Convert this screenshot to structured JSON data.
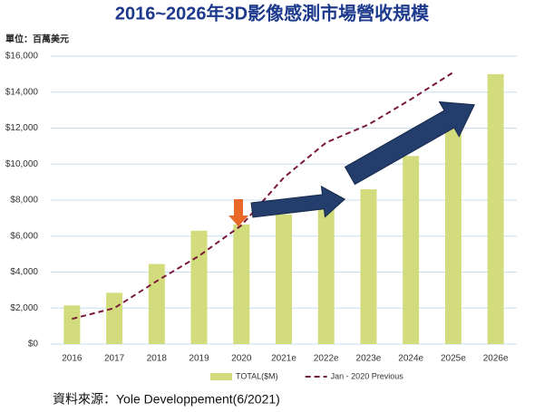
{
  "chart_data": {
    "type": "bar",
    "title": "2016~2026年3D影像感測市場營收規模",
    "unit_label": "單位：百萬美元",
    "source": "資料來源：Yole Developpement(6/2021)",
    "categories": [
      "2016",
      "2017",
      "2018",
      "2019",
      "2020",
      "2021e",
      "2022e",
      "2023e",
      "2024e",
      "2025e",
      "2026e"
    ],
    "series": [
      {
        "name": "TOTAL($M)",
        "type": "bar",
        "color": "#d3dc7c",
        "values": [
          2150,
          2850,
          4450,
          6300,
          6650,
          7200,
          7650,
          8600,
          10450,
          12700,
          15000
        ]
      },
      {
        "name": "Jan - 2020 Previous",
        "type": "line",
        "color": "#7a1a3c",
        "values": [
          1400,
          2000,
          3500,
          4900,
          6600,
          9250,
          11200,
          12200,
          13600,
          15100,
          null
        ]
      }
    ],
    "ylim": [
      0,
      16000
    ],
    "yticks": [
      {
        "value": 0,
        "label": "$0"
      },
      {
        "value": 2000,
        "label": "$2,000"
      },
      {
        "value": 4000,
        "label": "$4,000"
      },
      {
        "value": 6000,
        "label": "$6,000"
      },
      {
        "value": 8000,
        "label": "$8,000"
      },
      {
        "value": 10000,
        "label": "$10,000"
      },
      {
        "value": 12000,
        "label": "$12,000"
      },
      {
        "value": 14000,
        "label": "$14,000"
      },
      {
        "value": 16000,
        "label": "$16,000"
      }
    ],
    "grid": true,
    "legend": "bottom"
  }
}
